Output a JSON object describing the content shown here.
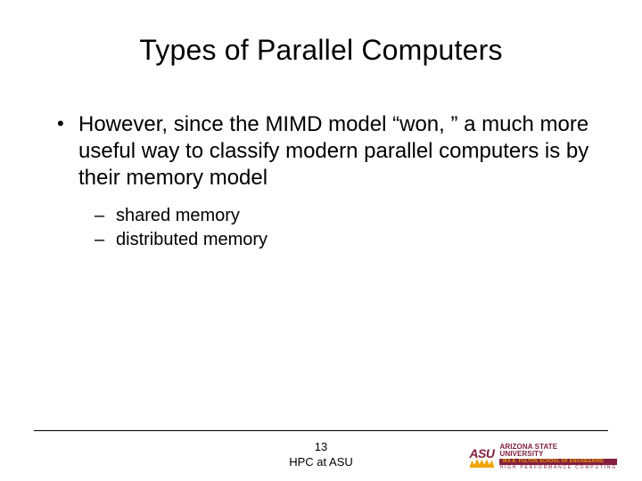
{
  "title": "Types of Parallel Computers",
  "bullets": {
    "main": "However, since the MIMD model “won, ” a much more useful way to classify modern parallel computers is by their memory model",
    "sub1": "shared memory",
    "sub2": "distributed memory"
  },
  "footer": {
    "page_number": "13",
    "label": "HPC at ASU"
  },
  "logo": {
    "mark": "ASU",
    "line1": "ARIZONA STATE",
    "line2": "UNIVERSITY",
    "school": "IRA A. FULTON SCHOOL OF ENGINEERING",
    "hpc": "HIGH PERFORMANCE COMPUTING"
  },
  "colors": {
    "text": "#000000",
    "background": "#ffffff",
    "maroon": "#831f3f",
    "gold": "#f0a500"
  }
}
